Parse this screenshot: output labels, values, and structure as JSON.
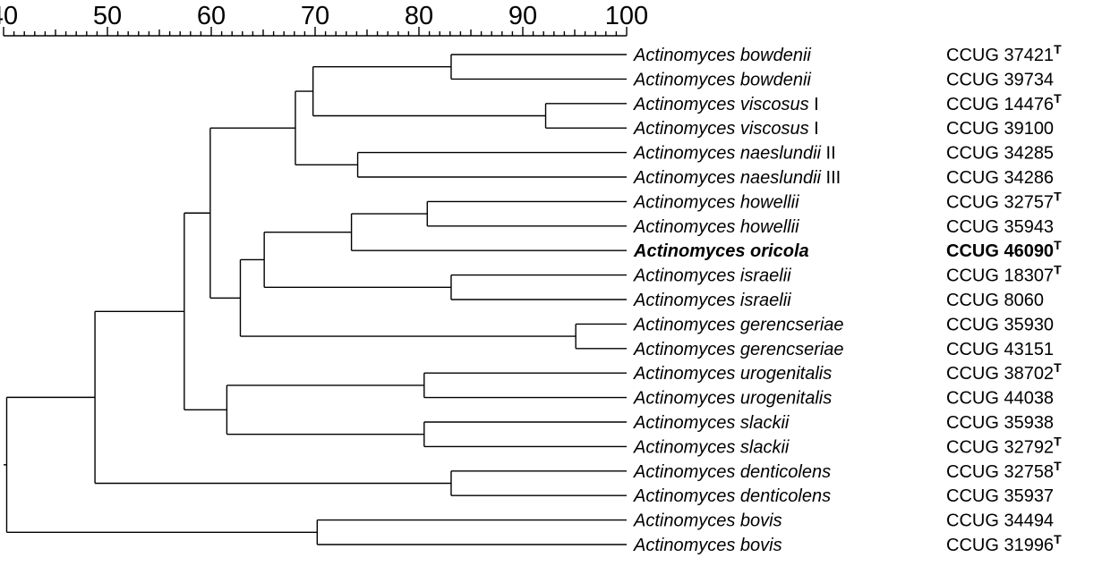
{
  "scale": {
    "min": 40,
    "max": 100,
    "major_ticks": [
      40,
      50,
      60,
      70,
      80,
      90,
      100
    ],
    "minor_step": 1
  },
  "leaves": [
    {
      "species": "Actinomyces bowdenii",
      "variant": "",
      "strain": "CCUG 37421",
      "type_strain": true,
      "bold": false
    },
    {
      "species": "Actinomyces bowdenii",
      "variant": "",
      "strain": "CCUG 39734",
      "type_strain": false,
      "bold": false
    },
    {
      "species": "Actinomyces viscosus",
      "variant": "I",
      "strain": "CCUG 14476",
      "type_strain": true,
      "bold": false
    },
    {
      "species": "Actinomyces viscosus",
      "variant": "I",
      "strain": "CCUG 39100",
      "type_strain": false,
      "bold": false
    },
    {
      "species": "Actinomyces naeslundii",
      "variant": "II",
      "strain": "CCUG 34285",
      "type_strain": false,
      "bold": false
    },
    {
      "species": "Actinomyces naeslundii",
      "variant": "III",
      "strain": "CCUG 34286",
      "type_strain": false,
      "bold": false
    },
    {
      "species": "Actinomyces howellii",
      "variant": "",
      "strain": "CCUG 32757",
      "type_strain": true,
      "bold": false
    },
    {
      "species": "Actinomyces howellii",
      "variant": "",
      "strain": "CCUG 35943",
      "type_strain": false,
      "bold": false
    },
    {
      "species": "Actinomyces oricola",
      "variant": "",
      "strain": "CCUG 46090",
      "type_strain": true,
      "bold": true
    },
    {
      "species": "Actinomyces israelii",
      "variant": "",
      "strain": "CCUG 18307",
      "type_strain": true,
      "bold": false
    },
    {
      "species": "Actinomyces israelii",
      "variant": "",
      "strain": "CCUG  8060",
      "type_strain": false,
      "bold": false
    },
    {
      "species": "Actinomyces gerencseriae",
      "variant": "",
      "strain": "CCUG 35930",
      "type_strain": false,
      "bold": false
    },
    {
      "species": "Actinomyces gerencseriae",
      "variant": "",
      "strain": "CCUG 43151",
      "type_strain": false,
      "bold": false
    },
    {
      "species": "Actinomyces urogenitalis",
      "variant": "",
      "strain": "CCUG 38702",
      "type_strain": true,
      "bold": false
    },
    {
      "species": "Actinomyces urogenitalis",
      "variant": "",
      "strain": "CCUG 44038",
      "type_strain": false,
      "bold": false
    },
    {
      "species": "Actinomyces slackii",
      "variant": "",
      "strain": "CCUG 35938",
      "type_strain": false,
      "bold": false
    },
    {
      "species": "Actinomyces slackii",
      "variant": "",
      "strain": "CCUG 32792",
      "type_strain": true,
      "bold": false
    },
    {
      "species": "Actinomyces denticolens",
      "variant": "",
      "strain": "CCUG 32758",
      "type_strain": true,
      "bold": false
    },
    {
      "species": "Actinomyces denticolens",
      "variant": "",
      "strain": "CCUG 35937",
      "type_strain": false,
      "bold": false
    },
    {
      "species": "Actinomyces bovis",
      "variant": "",
      "strain": "CCUG 34494",
      "type_strain": false,
      "bold": false
    },
    {
      "species": "Actinomyces bovis",
      "variant": "",
      "strain": "CCUG 31996",
      "type_strain": true,
      "bold": false
    }
  ],
  "type_marker": "T",
  "tree": {
    "sim": 40.3,
    "children": [
      {
        "sim": 48.8,
        "children": [
          {
            "sim": 57.4,
            "children": [
              {
                "sim": 59.9,
                "children": [
                  {
                    "sim": 68.1,
                    "children": [
                      {
                        "sim": 69.8,
                        "children": [
                          {
                            "sim": 83.1,
                            "children": [
                              {
                                "leaf": 0
                              },
                              {
                                "leaf": 1
                              }
                            ]
                          },
                          {
                            "sim": 92.2,
                            "children": [
                              {
                                "leaf": 2
                              },
                              {
                                "leaf": 3
                              }
                            ]
                          }
                        ]
                      },
                      {
                        "sim": 74.1,
                        "children": [
                          {
                            "leaf": 4
                          },
                          {
                            "leaf": 5
                          }
                        ]
                      }
                    ]
                  },
                  {
                    "sim": 62.8,
                    "children": [
                      {
                        "sim": 65.1,
                        "children": [
                          {
                            "sim": 73.5,
                            "children": [
                              {
                                "sim": 80.8,
                                "children": [
                                  {
                                    "leaf": 6
                                  },
                                  {
                                    "leaf": 7
                                  }
                                ]
                              },
                              {
                                "leaf": 8
                              }
                            ]
                          },
                          {
                            "sim": 83.1,
                            "children": [
                              {
                                "leaf": 9
                              },
                              {
                                "leaf": 10
                              }
                            ]
                          }
                        ]
                      },
                      {
                        "sim": 95.1,
                        "children": [
                          {
                            "leaf": 11
                          },
                          {
                            "leaf": 12
                          }
                        ]
                      }
                    ]
                  }
                ]
              },
              {
                "sim": 61.5,
                "children": [
                  {
                    "sim": 80.5,
                    "children": [
                      {
                        "leaf": 13
                      },
                      {
                        "leaf": 14
                      }
                    ]
                  },
                  {
                    "sim": 80.5,
                    "children": [
                      {
                        "leaf": 15
                      },
                      {
                        "leaf": 16
                      }
                    ]
                  }
                ]
              }
            ]
          },
          {
            "sim": 83.1,
            "children": [
              {
                "leaf": 17
              },
              {
                "leaf": 18
              }
            ]
          }
        ]
      },
      {
        "sim": 70.2,
        "children": [
          {
            "leaf": 19
          },
          {
            "leaf": 20
          }
        ]
      }
    ]
  }
}
